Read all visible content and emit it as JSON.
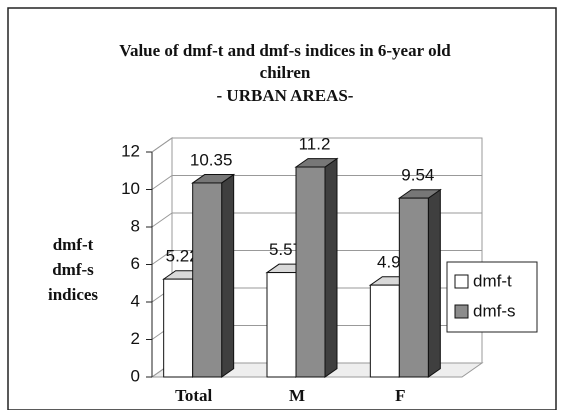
{
  "chart_data": {
    "type": "bar3d",
    "title": "Value of dmf-t and dmf-s indices in 6-year old chilren",
    "subtitle": "- URBAN AREAS-",
    "y_label": "dmf-t dmf-s indices",
    "categories": [
      "Total",
      "M",
      "F"
    ],
    "series": [
      {
        "name": "dmf-t",
        "color": "#ffffff",
        "values": [
          5.22,
          5.57,
          4.9
        ]
      },
      {
        "name": "dmf-s",
        "color": "#8c8c8c",
        "values": [
          10.35,
          11.2,
          9.54
        ]
      }
    ],
    "ylim": [
      0,
      12
    ],
    "yticks": [
      0,
      2,
      4,
      6,
      8,
      10,
      12
    ],
    "grid": true,
    "legend": "right"
  }
}
